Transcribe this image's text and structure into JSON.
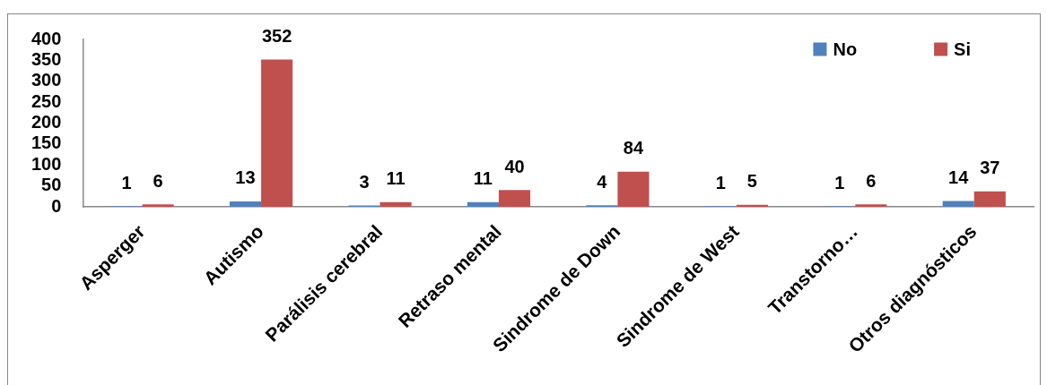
{
  "chart_data": {
    "type": "bar",
    "categories": [
      "Asperger",
      "Autismo",
      "Parálisis cerebral",
      "Retraso mental",
      "Sindrome de Down",
      "Sindrome de West",
      "Transtorno…",
      "Otros diagnósticos"
    ],
    "series": [
      {
        "name": "No",
        "color": "#4f81bd",
        "values": [
          1,
          13,
          3,
          11,
          4,
          1,
          1,
          14
        ]
      },
      {
        "name": "Si",
        "color": "#c0504d",
        "values": [
          6,
          352,
          11,
          40,
          84,
          5,
          6,
          37
        ]
      }
    ],
    "ylim": [
      0,
      400
    ],
    "yticks": [
      0,
      50,
      100,
      150,
      200,
      250,
      300,
      350,
      400
    ],
    "grid": false,
    "legend": "top right",
    "data_labels": true
  }
}
